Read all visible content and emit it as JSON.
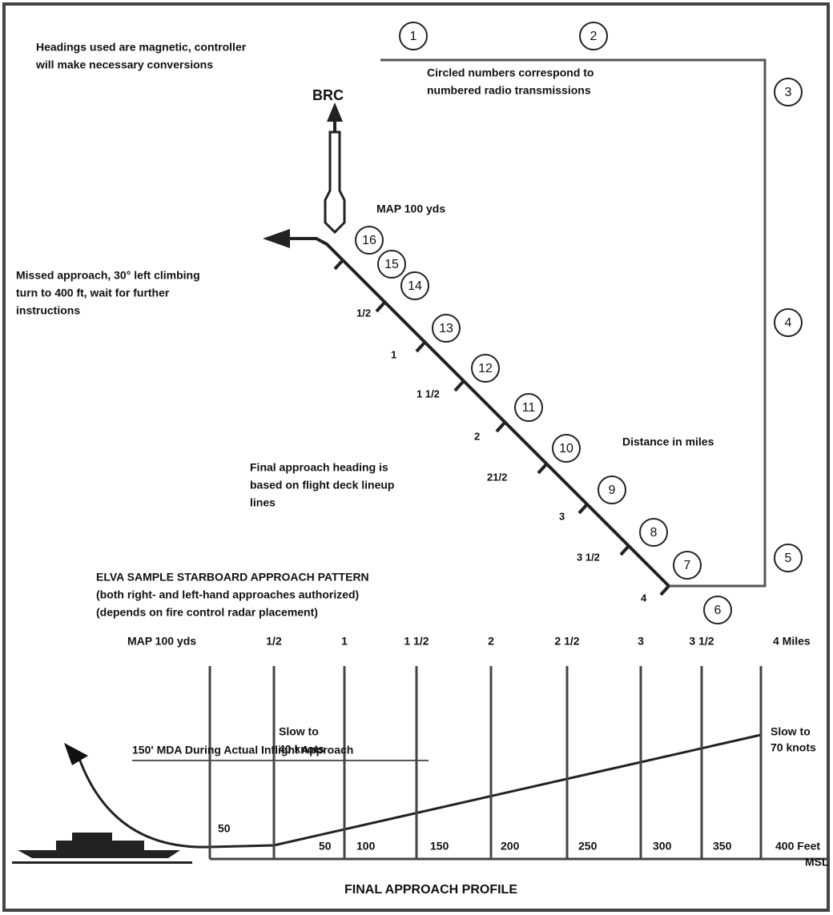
{
  "notes": {
    "headings": [
      "Headings used are magnetic, controller",
      "will make necessary conversions"
    ],
    "circled": [
      "Circled numbers correspond to",
      "numbered radio transmissions"
    ],
    "brc": "BRC",
    "map": "MAP 100 yds",
    "missed": [
      "Missed approach, 30° left climbing",
      "turn to 400 ft, wait for further",
      "instructions"
    ],
    "distance": "Distance in miles",
    "final_heading": [
      "Final approach heading is",
      "based on flight deck lineup",
      "lines"
    ],
    "pattern_title": [
      "ELVA SAMPLE STARBOARD APPROACH PATTERN",
      "(both right- and left-hand approaches authorized)",
      "(depends on fire control radar placement)"
    ]
  },
  "transmissions": [
    "1",
    "2",
    "3",
    "4",
    "5",
    "6",
    "7",
    "8",
    "9",
    "10",
    "11",
    "12",
    "13",
    "14",
    "15",
    "16"
  ],
  "plan_distances": [
    "1/2",
    "1",
    "1 1/2",
    "2",
    "21/2",
    "3",
    "3 1/2",
    "4"
  ],
  "profile": {
    "columns": [
      "MAP 100 yds",
      "1/2",
      "1",
      "1 1/2",
      "2",
      "2 1/2",
      "3",
      "3 1/2",
      "4 Miles"
    ],
    "altitudes": [
      "50",
      "50",
      "100",
      "150",
      "200",
      "250",
      "300",
      "350",
      "400 Feet"
    ],
    "msl": "MSL",
    "mda": "150' MDA During Actual Inflight Approach",
    "slow_40": [
      "Slow to",
      "40 knots"
    ],
    "slow_70": [
      "Slow to",
      "70 knots"
    ],
    "title": "FINAL APPROACH PROFILE"
  }
}
